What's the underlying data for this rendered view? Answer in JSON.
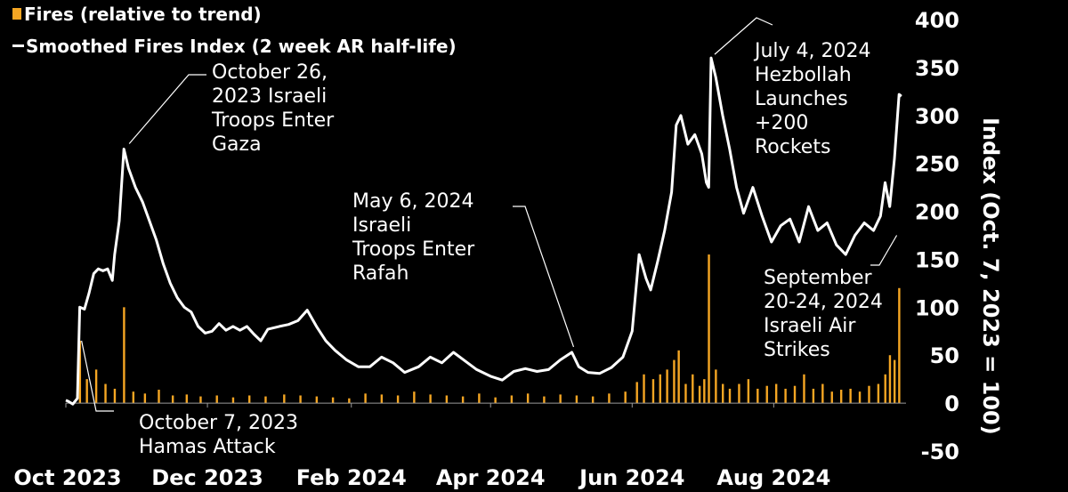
{
  "legend": {
    "fires_label": "Fires (relative to trend)",
    "index_label": "Smoothed Fires Index (2 week AR half-life)"
  },
  "colors": {
    "background": "#000000",
    "line": "#ffffff",
    "bars": "#f5a623",
    "text": "#ffffff"
  },
  "annotations": [
    {
      "text": "October 26,\n2023 Israeli\nTroops Enter\nGaza"
    },
    {
      "text": "October 7, 2023\nHamas Attack"
    },
    {
      "text": "May 6, 2024\nIsraeli\nTroops Enter\nRafah"
    },
    {
      "text": "July 4, 2024\nHezbollah\nLaunches\n+200\nRockets"
    },
    {
      "text": "September\n20-24, 2024\nIsraeli Air\nStrikes"
    }
  ],
  "chart_data": {
    "type": "line",
    "ylabel": "Index (Oct. 7, 2023 = 100)",
    "ylim": [
      -50,
      400
    ],
    "yticks": [
      -50,
      0,
      50,
      100,
      150,
      200,
      250,
      300,
      350,
      400
    ],
    "xlim": [
      "2023-10-01",
      "2024-09-27"
    ],
    "xticks": [
      {
        "date": "2023-10-01",
        "label": "Oct 2023"
      },
      {
        "date": "2023-12-01",
        "label": "Dec 2023"
      },
      {
        "date": "2024-02-01",
        "label": "Feb 2024"
      },
      {
        "date": "2024-04-01",
        "label": "Apr 2024"
      },
      {
        "date": "2024-06-01",
        "label": "Jun 2024"
      },
      {
        "date": "2024-08-01",
        "label": "Aug 2024"
      }
    ],
    "grid": false,
    "legend_position": "top-left",
    "series": [
      {
        "name": "Smoothed Fires Index (2 week AR half-life)",
        "type": "line",
        "points": [
          [
            "2023-10-01",
            3
          ],
          [
            "2023-10-02",
            2
          ],
          [
            "2023-10-04",
            -1
          ],
          [
            "2023-10-06",
            5
          ],
          [
            "2023-10-07",
            100
          ],
          [
            "2023-10-09",
            98
          ],
          [
            "2023-10-11",
            115
          ],
          [
            "2023-10-13",
            135
          ],
          [
            "2023-10-15",
            140
          ],
          [
            "2023-10-17",
            138
          ],
          [
            "2023-10-19",
            140
          ],
          [
            "2023-10-21",
            128
          ],
          [
            "2023-10-22",
            155
          ],
          [
            "2023-10-24",
            190
          ],
          [
            "2023-10-26",
            265
          ],
          [
            "2023-10-28",
            245
          ],
          [
            "2023-10-31",
            225
          ],
          [
            "2023-11-03",
            210
          ],
          [
            "2023-11-06",
            190
          ],
          [
            "2023-11-09",
            170
          ],
          [
            "2023-11-12",
            145
          ],
          [
            "2023-11-15",
            125
          ],
          [
            "2023-11-18",
            110
          ],
          [
            "2023-11-21",
            100
          ],
          [
            "2023-11-24",
            95
          ],
          [
            "2023-11-27",
            80
          ],
          [
            "2023-11-30",
            73
          ],
          [
            "2023-12-03",
            75
          ],
          [
            "2023-12-06",
            83
          ],
          [
            "2023-12-09",
            76
          ],
          [
            "2023-12-12",
            80
          ],
          [
            "2023-12-15",
            76
          ],
          [
            "2023-12-18",
            80
          ],
          [
            "2023-12-21",
            72
          ],
          [
            "2023-12-24",
            65
          ],
          [
            "2023-12-27",
            77
          ],
          [
            "2024-01-01",
            80
          ],
          [
            "2024-01-05",
            82
          ],
          [
            "2024-01-09",
            86
          ],
          [
            "2024-01-13",
            97
          ],
          [
            "2024-01-17",
            80
          ],
          [
            "2024-01-21",
            65
          ],
          [
            "2024-01-25",
            55
          ],
          [
            "2024-01-30",
            45
          ],
          [
            "2024-02-04",
            38
          ],
          [
            "2024-02-09",
            38
          ],
          [
            "2024-02-14",
            48
          ],
          [
            "2024-02-19",
            42
          ],
          [
            "2024-02-24",
            32
          ],
          [
            "2024-03-01",
            38
          ],
          [
            "2024-03-06",
            48
          ],
          [
            "2024-03-11",
            42
          ],
          [
            "2024-03-16",
            53
          ],
          [
            "2024-03-21",
            44
          ],
          [
            "2024-03-26",
            35
          ],
          [
            "2024-04-01",
            28
          ],
          [
            "2024-04-06",
            24
          ],
          [
            "2024-04-11",
            33
          ],
          [
            "2024-04-16",
            36
          ],
          [
            "2024-04-21",
            33
          ],
          [
            "2024-04-26",
            35
          ],
          [
            "2024-05-01",
            45
          ],
          [
            "2024-05-06",
            53
          ],
          [
            "2024-05-09",
            38
          ],
          [
            "2024-05-13",
            32
          ],
          [
            "2024-05-18",
            31
          ],
          [
            "2024-05-23",
            37
          ],
          [
            "2024-05-28",
            48
          ],
          [
            "2024-06-01",
            75
          ],
          [
            "2024-06-04",
            155
          ],
          [
            "2024-06-07",
            130
          ],
          [
            "2024-06-09",
            118
          ],
          [
            "2024-06-12",
            148
          ],
          [
            "2024-06-15",
            180
          ],
          [
            "2024-06-18",
            220
          ],
          [
            "2024-06-20",
            290
          ],
          [
            "2024-06-22",
            300
          ],
          [
            "2024-06-25",
            270
          ],
          [
            "2024-06-28",
            280
          ],
          [
            "2024-07-01",
            260
          ],
          [
            "2024-07-03",
            230
          ],
          [
            "2024-07-04",
            225
          ],
          [
            "2024-07-05",
            360
          ],
          [
            "2024-07-07",
            340
          ],
          [
            "2024-07-10",
            300
          ],
          [
            "2024-07-13",
            265
          ],
          [
            "2024-07-16",
            225
          ],
          [
            "2024-07-19",
            198
          ],
          [
            "2024-07-23",
            225
          ],
          [
            "2024-07-27",
            195
          ],
          [
            "2024-07-31",
            168
          ],
          [
            "2024-08-04",
            185
          ],
          [
            "2024-08-08",
            192
          ],
          [
            "2024-08-12",
            168
          ],
          [
            "2024-08-16",
            205
          ],
          [
            "2024-08-20",
            180
          ],
          [
            "2024-08-24",
            188
          ],
          [
            "2024-08-28",
            165
          ],
          [
            "2024-09-01",
            155
          ],
          [
            "2024-09-05",
            175
          ],
          [
            "2024-09-09",
            188
          ],
          [
            "2024-09-13",
            180
          ],
          [
            "2024-09-16",
            195
          ],
          [
            "2024-09-18",
            230
          ],
          [
            "2024-09-20",
            205
          ],
          [
            "2024-09-22",
            255
          ],
          [
            "2024-09-24",
            322
          ],
          [
            "2024-09-25",
            320
          ]
        ]
      },
      {
        "name": "Fires (relative to trend)",
        "type": "bar",
        "points": [
          [
            "2023-10-07",
            65
          ],
          [
            "2023-10-10",
            25
          ],
          [
            "2023-10-14",
            35
          ],
          [
            "2023-10-18",
            20
          ],
          [
            "2023-10-22",
            15
          ],
          [
            "2023-10-26",
            100
          ],
          [
            "2023-10-30",
            12
          ],
          [
            "2023-11-04",
            10
          ],
          [
            "2023-11-10",
            14
          ],
          [
            "2023-11-16",
            8
          ],
          [
            "2023-11-22",
            9
          ],
          [
            "2023-11-28",
            7
          ],
          [
            "2023-12-05",
            8
          ],
          [
            "2023-12-12",
            6
          ],
          [
            "2023-12-19",
            8
          ],
          [
            "2023-12-26",
            7
          ],
          [
            "2024-01-03",
            9
          ],
          [
            "2024-01-10",
            8
          ],
          [
            "2024-01-17",
            7
          ],
          [
            "2024-01-24",
            6
          ],
          [
            "2024-01-31",
            5
          ],
          [
            "2024-02-07",
            10
          ],
          [
            "2024-02-14",
            9
          ],
          [
            "2024-02-21",
            8
          ],
          [
            "2024-02-28",
            12
          ],
          [
            "2024-03-06",
            9
          ],
          [
            "2024-03-13",
            8
          ],
          [
            "2024-03-20",
            7
          ],
          [
            "2024-03-27",
            10
          ],
          [
            "2024-04-03",
            6
          ],
          [
            "2024-04-10",
            8
          ],
          [
            "2024-04-17",
            10
          ],
          [
            "2024-04-24",
            7
          ],
          [
            "2024-05-01",
            9
          ],
          [
            "2024-05-08",
            8
          ],
          [
            "2024-05-15",
            7
          ],
          [
            "2024-05-22",
            10
          ],
          [
            "2024-05-29",
            12
          ],
          [
            "2024-06-03",
            22
          ],
          [
            "2024-06-06",
            30
          ],
          [
            "2024-06-10",
            25
          ],
          [
            "2024-06-13",
            30
          ],
          [
            "2024-06-16",
            35
          ],
          [
            "2024-06-19",
            45
          ],
          [
            "2024-06-21",
            55
          ],
          [
            "2024-06-24",
            20
          ],
          [
            "2024-06-27",
            30
          ],
          [
            "2024-06-30",
            18
          ],
          [
            "2024-07-02",
            25
          ],
          [
            "2024-07-04",
            155
          ],
          [
            "2024-07-07",
            35
          ],
          [
            "2024-07-10",
            20
          ],
          [
            "2024-07-13",
            15
          ],
          [
            "2024-07-17",
            20
          ],
          [
            "2024-07-21",
            25
          ],
          [
            "2024-07-25",
            15
          ],
          [
            "2024-07-29",
            18
          ],
          [
            "2024-08-02",
            20
          ],
          [
            "2024-08-06",
            15
          ],
          [
            "2024-08-10",
            18
          ],
          [
            "2024-08-14",
            30
          ],
          [
            "2024-08-18",
            15
          ],
          [
            "2024-08-22",
            20
          ],
          [
            "2024-08-26",
            12
          ],
          [
            "2024-08-30",
            14
          ],
          [
            "2024-09-03",
            15
          ],
          [
            "2024-09-07",
            12
          ],
          [
            "2024-09-11",
            18
          ],
          [
            "2024-09-15",
            20
          ],
          [
            "2024-09-18",
            30
          ],
          [
            "2024-09-20",
            50
          ],
          [
            "2024-09-22",
            45
          ],
          [
            "2024-09-24",
            120
          ]
        ]
      }
    ]
  }
}
